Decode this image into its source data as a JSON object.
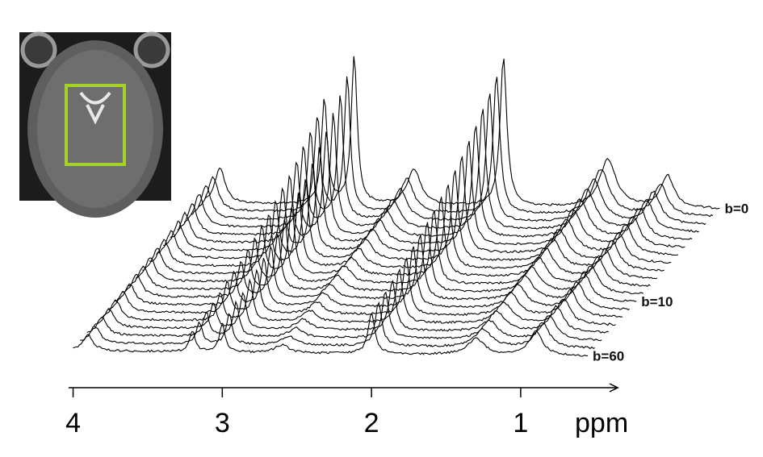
{
  "chart_data": {
    "type": "waterfall",
    "xlabel": "ppm",
    "xlim": [
      4.03,
      0.35
    ],
    "xticks": [
      4,
      3,
      2,
      1
    ],
    "xrange": [
      4.0,
      0.55
    ],
    "x": [
      3.9,
      3.2,
      3.0,
      2.6,
      2.0,
      1.3,
      0.9
    ],
    "color": "#000000",
    "series": [
      {
        "name": "b=0",
        "values": [
          45,
          130,
          185,
          45,
          185,
          60,
          40
        ]
      },
      {
        "values": [
          43,
          119,
          169,
          42,
          173,
          57,
          39
        ]
      },
      {
        "values": [
          41,
          109,
          155,
          39,
          161,
          54,
          39
        ]
      },
      {
        "values": [
          40,
          100,
          142,
          36,
          150,
          51,
          38
        ]
      },
      {
        "values": [
          38,
          92,
          130,
          33,
          140,
          48,
          38
        ]
      },
      {
        "values": [
          36,
          84,
          119,
          31,
          131,
          45,
          37
        ]
      },
      {
        "values": [
          35,
          77,
          109,
          28,
          122,
          43,
          37
        ]
      },
      {
        "values": [
          33,
          71,
          100,
          26,
          114,
          40,
          36
        ]
      },
      {
        "values": [
          32,
          65,
          92,
          24,
          106,
          38,
          36
        ]
      },
      {
        "values": [
          31,
          60,
          84,
          22,
          99,
          36,
          35
        ]
      },
      {
        "values": [
          29,
          55,
          77,
          21,
          93,
          34,
          35
        ]
      },
      {
        "values": [
          28,
          50,
          70,
          19,
          86,
          32,
          34
        ]
      },
      {
        "name": "b=10",
        "values": [
          27,
          46,
          64,
          17,
          81,
          31,
          34
        ]
      },
      {
        "values": [
          26,
          42,
          59,
          16,
          75,
          29,
          33
        ]
      },
      {
        "values": [
          25,
          39,
          54,
          15,
          70,
          28,
          33
        ]
      },
      {
        "values": [
          24,
          36,
          50,
          14,
          66,
          26,
          32
        ]
      },
      {
        "values": [
          23,
          33,
          45,
          13,
          61,
          25,
          32
        ]
      },
      {
        "values": [
          22,
          30,
          42,
          12,
          57,
          23,
          31
        ]
      },
      {
        "values": [
          21,
          27,
          38,
          11,
          53,
          22,
          31
        ]
      },
      {
        "name": "b=60",
        "values": [
          20,
          25,
          35,
          10,
          50,
          20,
          30
        ]
      }
    ]
  }
}
